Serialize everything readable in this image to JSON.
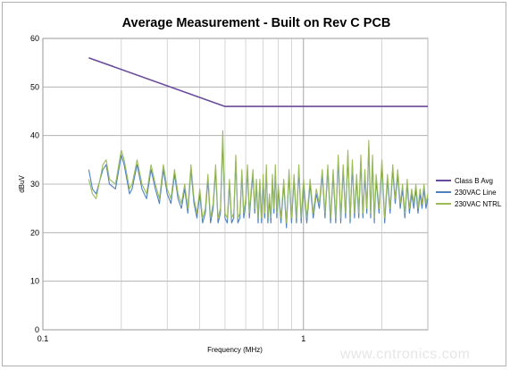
{
  "chart_data": {
    "type": "line",
    "title": "Average Measurement - Built on Rev C PCB",
    "xlabel": "Frequency (MHz)",
    "ylabel": "dBuV",
    "x_scale": "log",
    "xlim": [
      0.1,
      3
    ],
    "ylim": [
      0,
      60
    ],
    "x_ticks": [
      "0.1",
      "1"
    ],
    "y_ticks": [
      "0",
      "10",
      "20",
      "30",
      "40",
      "50",
      "60"
    ],
    "grid": true,
    "legend_position": "right",
    "series": [
      {
        "name": "Class B Avg",
        "color": "#6a4a9a",
        "x": [
          0.15,
          0.5,
          3
        ],
        "y": [
          56,
          46,
          46
        ]
      },
      {
        "name": "230VAC Line",
        "color": "#4f81bd",
        "x": [
          0.15,
          0.155,
          0.16,
          0.17,
          0.175,
          0.18,
          0.19,
          0.2,
          0.205,
          0.21,
          0.215,
          0.22,
          0.23,
          0.24,
          0.25,
          0.26,
          0.27,
          0.28,
          0.29,
          0.3,
          0.31,
          0.32,
          0.33,
          0.34,
          0.35,
          0.36,
          0.37,
          0.38,
          0.39,
          0.4,
          0.41,
          0.42,
          0.43,
          0.44,
          0.45,
          0.46,
          0.47,
          0.48,
          0.49,
          0.5,
          0.51,
          0.52,
          0.53,
          0.54,
          0.55,
          0.56,
          0.57,
          0.58,
          0.59,
          0.6,
          0.61,
          0.62,
          0.63,
          0.64,
          0.65,
          0.66,
          0.67,
          0.68,
          0.69,
          0.7,
          0.71,
          0.72,
          0.73,
          0.74,
          0.75,
          0.76,
          0.77,
          0.78,
          0.79,
          0.8,
          0.82,
          0.84,
          0.86,
          0.88,
          0.9,
          0.92,
          0.94,
          0.96,
          0.98,
          1.0,
          1.03,
          1.06,
          1.09,
          1.12,
          1.15,
          1.18,
          1.21,
          1.24,
          1.27,
          1.3,
          1.33,
          1.36,
          1.39,
          1.42,
          1.45,
          1.48,
          1.51,
          1.54,
          1.57,
          1.6,
          1.63,
          1.66,
          1.69,
          1.72,
          1.75,
          1.78,
          1.81,
          1.84,
          1.87,
          1.9,
          1.95,
          2.0,
          2.05,
          2.1,
          2.15,
          2.2,
          2.25,
          2.3,
          2.35,
          2.4,
          2.45,
          2.5,
          2.55,
          2.6,
          2.65,
          2.7,
          2.75,
          2.8,
          2.85,
          2.9,
          2.95,
          3.0
        ],
        "y": [
          33,
          29,
          28,
          33,
          34,
          30,
          29,
          36,
          34,
          31,
          28,
          29,
          34,
          29,
          27,
          33,
          29,
          26,
          33,
          28,
          26,
          32,
          27,
          25,
          29,
          24,
          33,
          26,
          23,
          28,
          22,
          24,
          31,
          22,
          25,
          33,
          22,
          24,
          39,
          23,
          22,
          30,
          22,
          23,
          35,
          22,
          23,
          32,
          23,
          26,
          33,
          23,
          28,
          32,
          24,
          30,
          22,
          30,
          22,
          31,
          23,
          33,
          22,
          27,
          22,
          31,
          24,
          33,
          23,
          29,
          22,
          30,
          21,
          32,
          22,
          31,
          22,
          33,
          22,
          30,
          22,
          30,
          23,
          28,
          25,
          32,
          23,
          33,
          22,
          32,
          22,
          35,
          22,
          33,
          23,
          36,
          22,
          34,
          23,
          31,
          23,
          35,
          23,
          32,
          24,
          38,
          23,
          35,
          22,
          31,
          24,
          34,
          22,
          31,
          24,
          33,
          26,
          32,
          25,
          29,
          23,
          30,
          24,
          28,
          25,
          29,
          24,
          28,
          25,
          29,
          25,
          27
        ]
      },
      {
        "name": "230VAC NTRL",
        "color": "#9bbb59",
        "x": [
          0.15,
          0.155,
          0.16,
          0.17,
          0.175,
          0.18,
          0.19,
          0.2,
          0.205,
          0.21,
          0.215,
          0.22,
          0.23,
          0.24,
          0.25,
          0.26,
          0.27,
          0.28,
          0.29,
          0.3,
          0.31,
          0.32,
          0.33,
          0.34,
          0.35,
          0.36,
          0.37,
          0.38,
          0.39,
          0.4,
          0.41,
          0.42,
          0.43,
          0.44,
          0.45,
          0.46,
          0.47,
          0.48,
          0.49,
          0.5,
          0.51,
          0.52,
          0.53,
          0.54,
          0.55,
          0.56,
          0.57,
          0.58,
          0.59,
          0.6,
          0.61,
          0.62,
          0.63,
          0.64,
          0.65,
          0.66,
          0.67,
          0.68,
          0.69,
          0.7,
          0.71,
          0.72,
          0.73,
          0.74,
          0.75,
          0.76,
          0.77,
          0.78,
          0.79,
          0.8,
          0.82,
          0.84,
          0.86,
          0.88,
          0.9,
          0.92,
          0.94,
          0.96,
          0.98,
          1.0,
          1.03,
          1.06,
          1.09,
          1.12,
          1.15,
          1.18,
          1.21,
          1.24,
          1.27,
          1.3,
          1.33,
          1.36,
          1.39,
          1.42,
          1.45,
          1.48,
          1.51,
          1.54,
          1.57,
          1.6,
          1.63,
          1.66,
          1.69,
          1.72,
          1.75,
          1.78,
          1.81,
          1.84,
          1.87,
          1.9,
          1.95,
          2.0,
          2.05,
          2.1,
          2.15,
          2.2,
          2.25,
          2.3,
          2.35,
          2.4,
          2.45,
          2.5,
          2.55,
          2.6,
          2.65,
          2.7,
          2.75,
          2.8,
          2.85,
          2.9,
          2.95,
          3.0
        ],
        "y": [
          31,
          28,
          27,
          34,
          35,
          31,
          30,
          37,
          35,
          32,
          29,
          30,
          35,
          30,
          28,
          34,
          30,
          27,
          34,
          29,
          27,
          33,
          28,
          26,
          30,
          25,
          34,
          27,
          24,
          29,
          23,
          25,
          32,
          23,
          26,
          34,
          23,
          25,
          41,
          24,
          23,
          31,
          23,
          24,
          36,
          23,
          24,
          33,
          24,
          27,
          34,
          24,
          29,
          33,
          25,
          31,
          23,
          31,
          23,
          32,
          24,
          34,
          23,
          28,
          23,
          32,
          25,
          34,
          24,
          30,
          23,
          31,
          22,
          33,
          23,
          32,
          23,
          34,
          23,
          31,
          23,
          31,
          24,
          29,
          26,
          33,
          24,
          34,
          23,
          33,
          23,
          36,
          23,
          34,
          24,
          37,
          23,
          35,
          24,
          32,
          24,
          36,
          24,
          33,
          25,
          39,
          24,
          36,
          23,
          32,
          25,
          35,
          23,
          32,
          25,
          34,
          27,
          33,
          26,
          30,
          24,
          31,
          25,
          29,
          26,
          30,
          25,
          29,
          26,
          30,
          26,
          28
        ]
      }
    ]
  },
  "watermark": "www.cntronics.com"
}
